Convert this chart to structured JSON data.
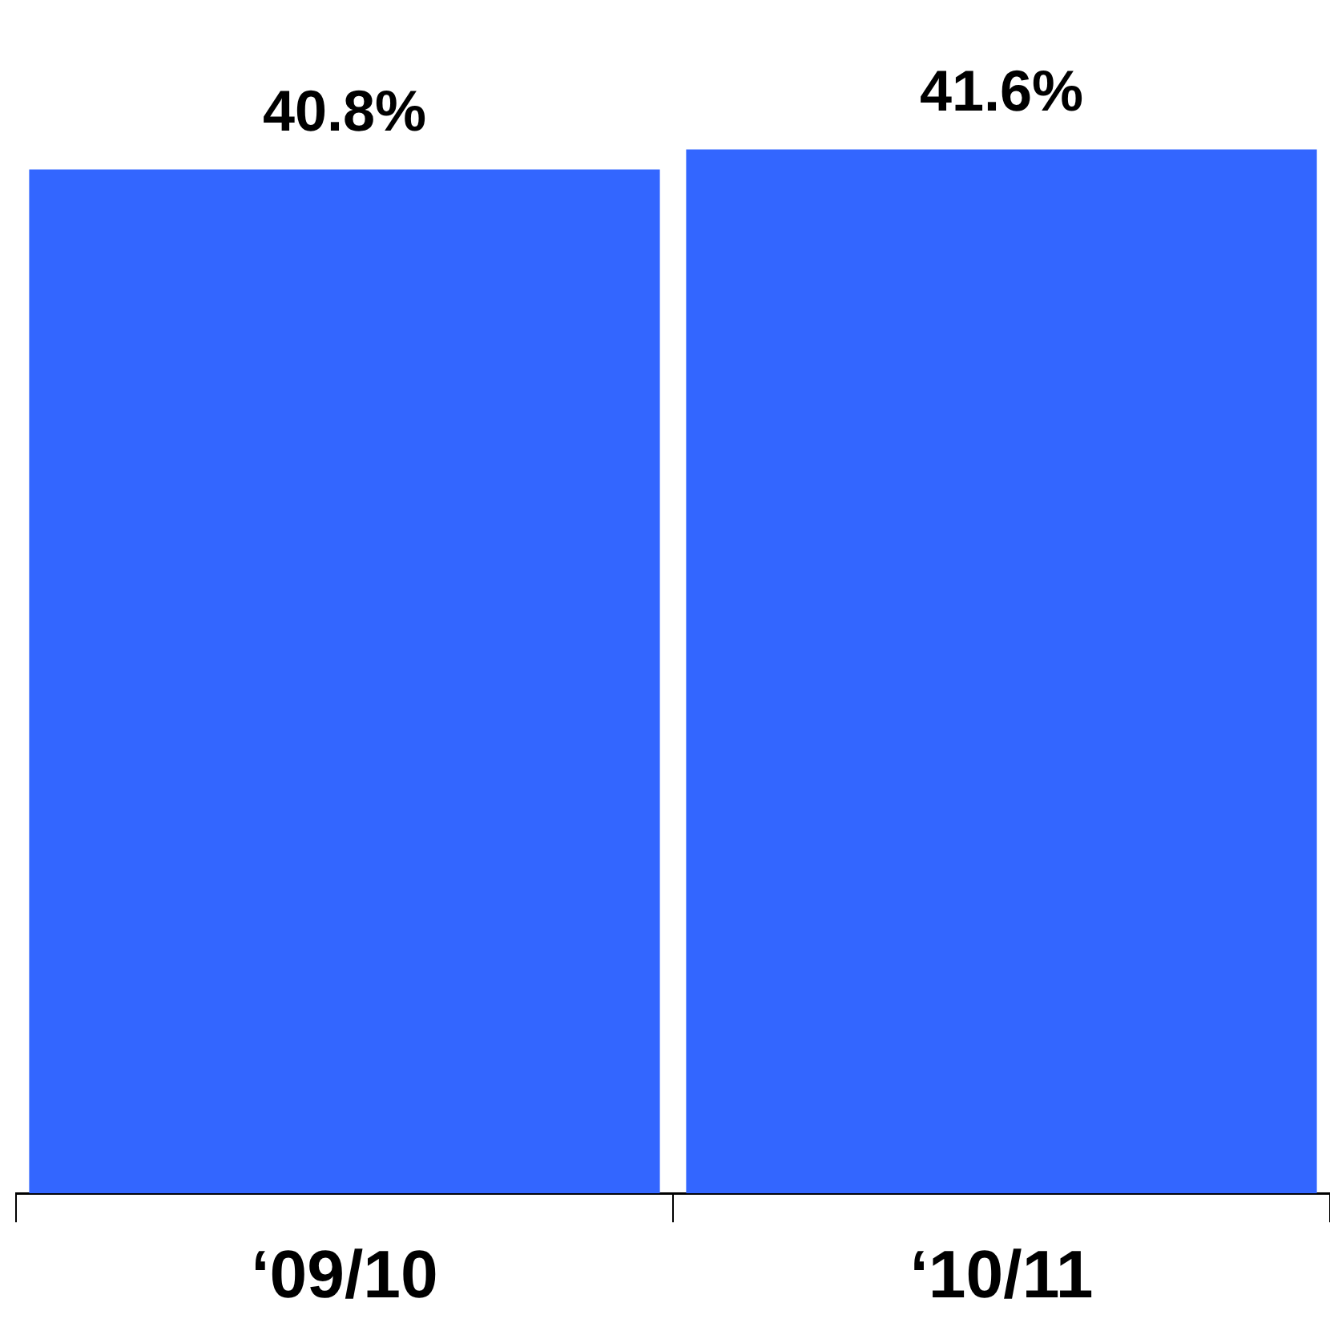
{
  "chart_data": {
    "type": "bar",
    "categories": [
      "‘09/10",
      "‘10/11"
    ],
    "values": [
      40.8,
      41.6
    ],
    "value_labels": [
      "40.8%",
      "41.6%"
    ],
    "color": "#3366ff",
    "grid": false,
    "legend": false,
    "tick_labels": "x"
  }
}
